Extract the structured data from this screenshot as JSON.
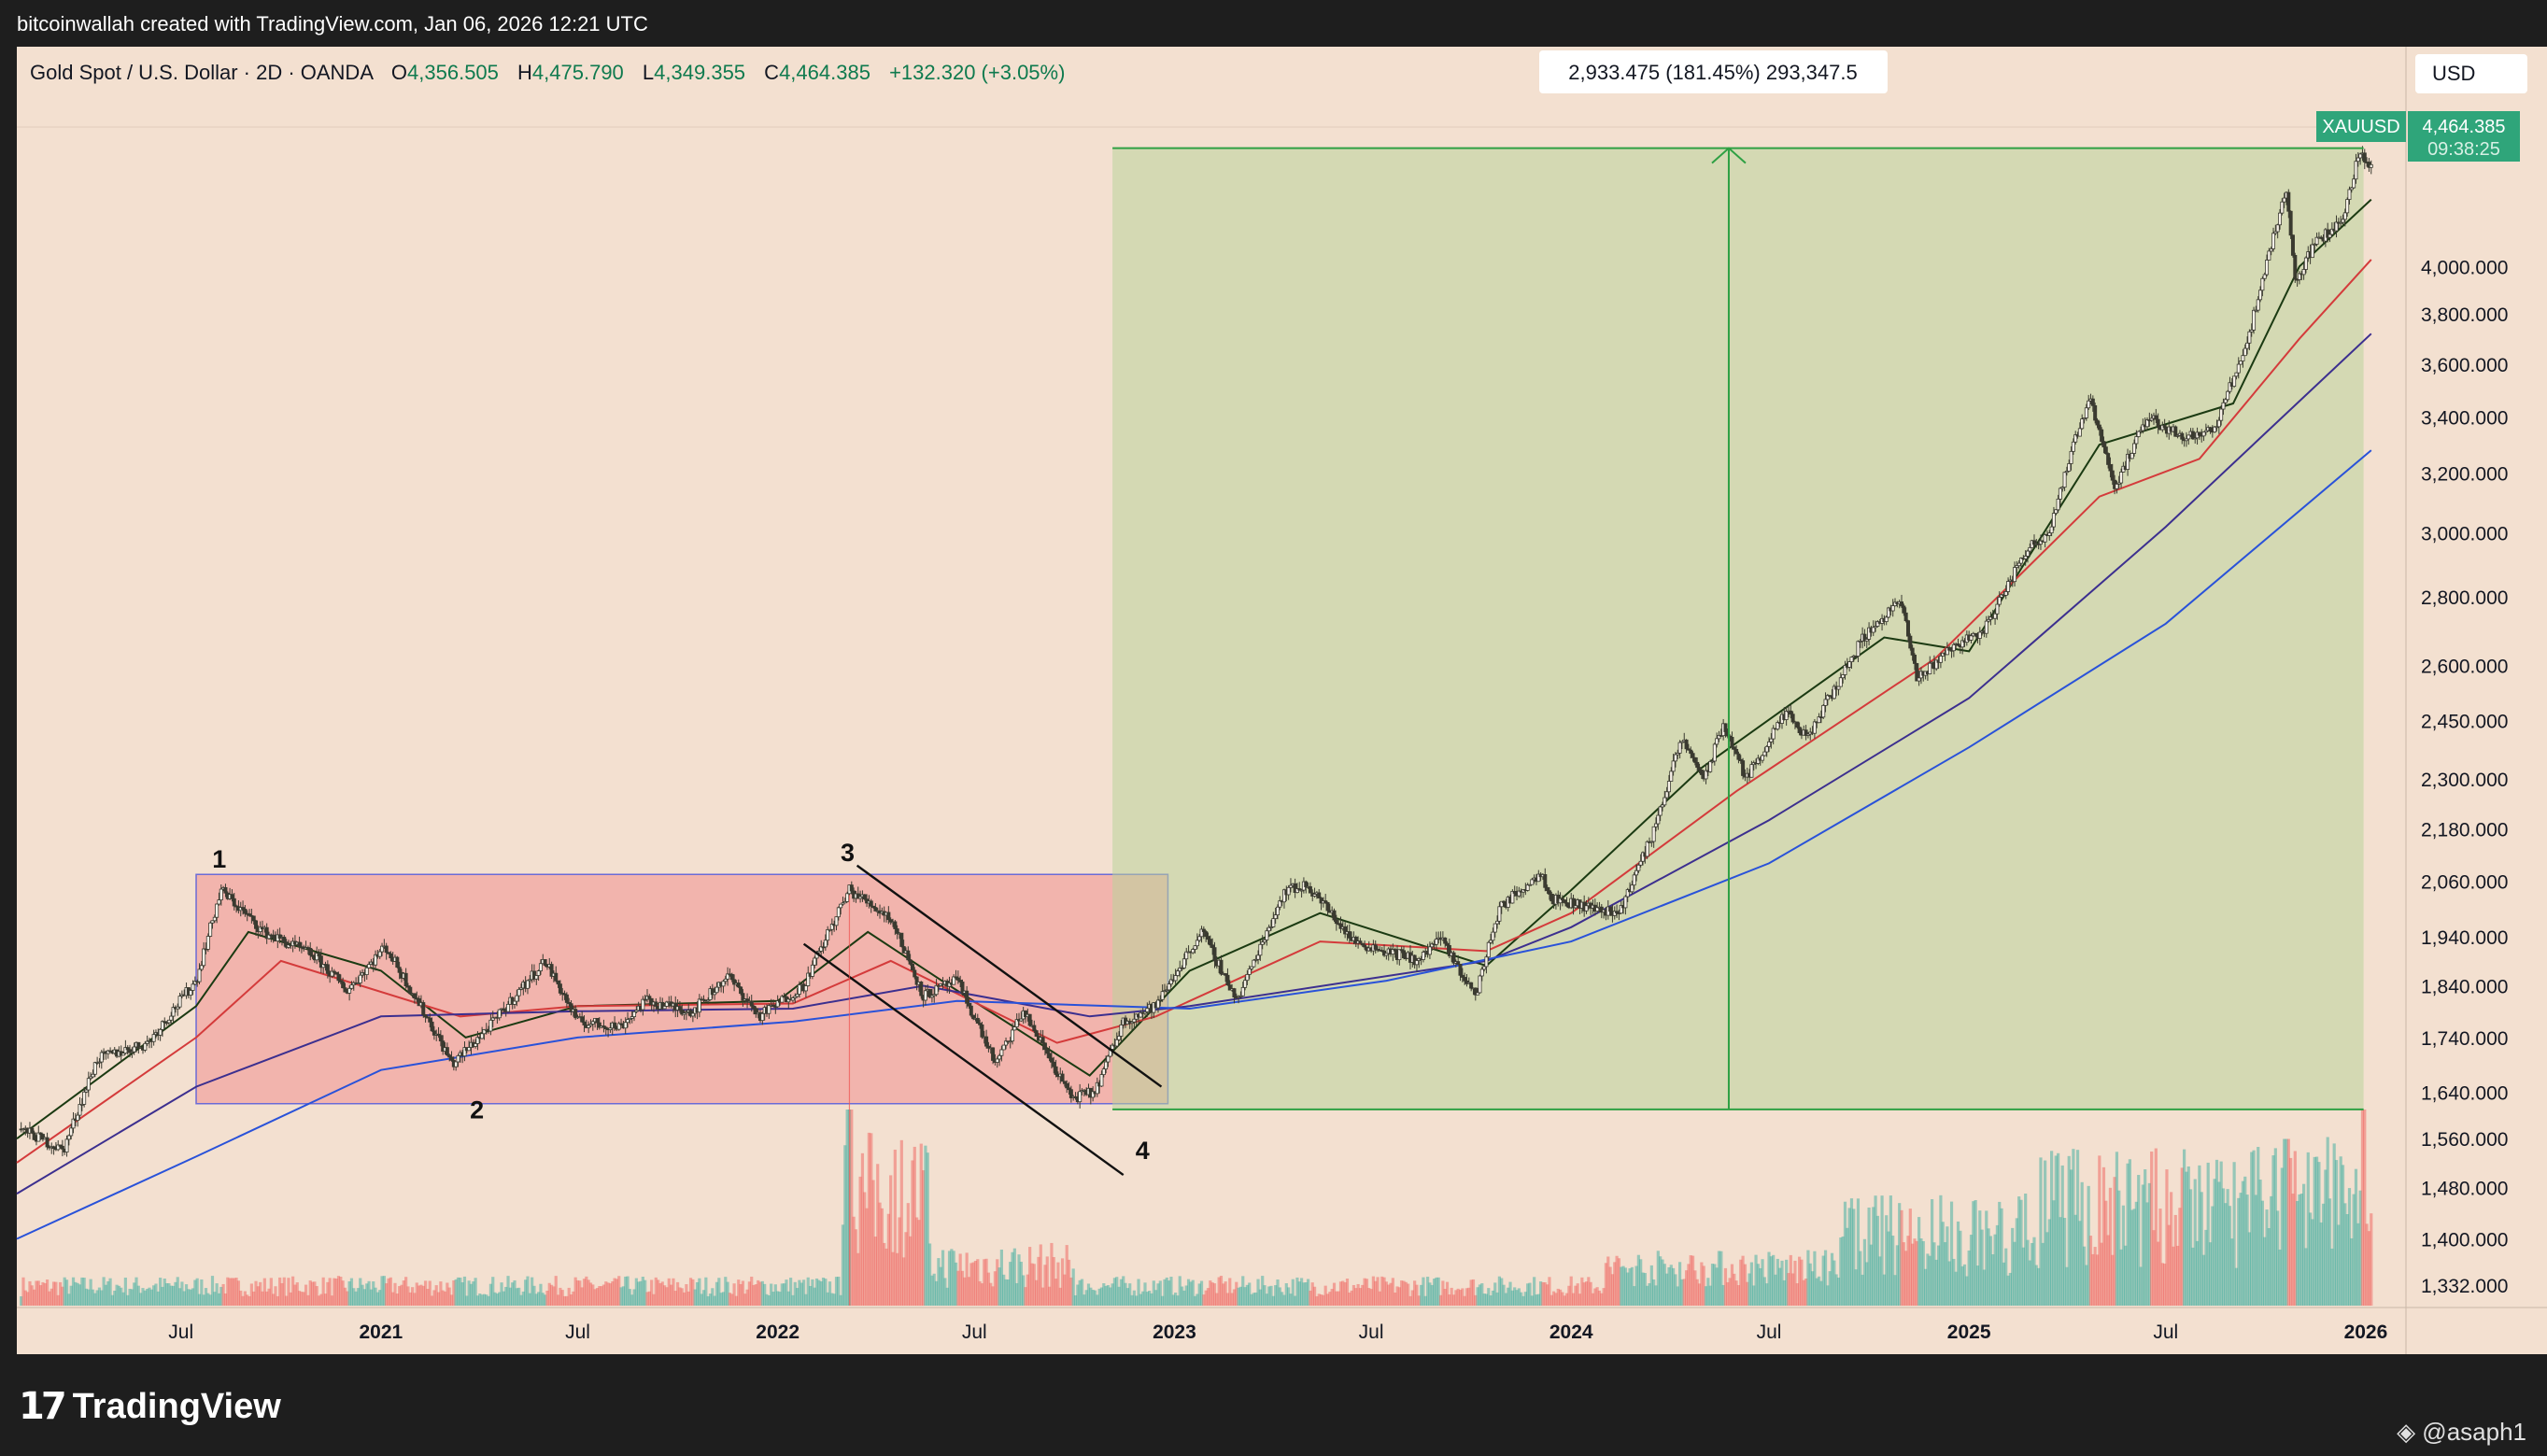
{
  "header": {
    "credit": "bitcoinwallah created with TradingView.com, Jan 06, 2026 12:21 UTC"
  },
  "legend": {
    "symbol": "Gold Spot / U.S. Dollar · 2D · OANDA",
    "open_label": "O",
    "open": "4,356.505",
    "high_label": "H",
    "high": "4,475.790",
    "low_label": "L",
    "low": "4,349.355",
    "close_label": "C",
    "close": "4,464.385",
    "change": "+132.320 (+3.05%)"
  },
  "currency_button": "USD",
  "price_tag": {
    "ticker": "XAUUSD",
    "price": "4,464.385",
    "countdown": "09:38:25"
  },
  "measure_label": "2,933.475 (181.45%) 293,347.5",
  "wave_labels": [
    "1",
    "2",
    "3",
    "4"
  ],
  "footer": {
    "brand": "TradingView",
    "watermark": "@asaph1"
  },
  "colors": {
    "plot_bg": "#f3e0d0",
    "up": "#26a69a",
    "down": "#ef5350",
    "candle": "#3a3a30",
    "ema_short": "#1b3a12",
    "ema_mid": "#d43b3b",
    "ema_long": "#3c2f8f",
    "ema_longest": "#2952d9",
    "range_box": "#f09090",
    "measure_box": "#b9d49a",
    "measure_line": "#2ea043"
  },
  "chart_data": {
    "type": "candlestick",
    "y_scale": "log",
    "ylim": [
      1300,
      4650
    ],
    "y_ticks": [
      1332,
      1400,
      1480,
      1560,
      1640,
      1740,
      1840,
      1940,
      2060,
      2180,
      2300,
      2450,
      2600,
      2800,
      3000,
      3200,
      3400,
      3600,
      3800,
      4000
    ],
    "y_tick_labels": [
      "1,332.000",
      "1,400.000",
      "1,480.000",
      "1,560.000",
      "1,640.000",
      "1,740.000",
      "1,840.000",
      "1,940.000",
      "2,060.000",
      "2,180.000",
      "2,300.000",
      "2,450.000",
      "2,600.000",
      "2,800.000",
      "3,000.000",
      "3,200.000",
      "3,400.000",
      "3,600.000",
      "3,800.000",
      "4,000.000"
    ],
    "x_ticks": [
      {
        "date": "2020-07-01",
        "label": "Jul",
        "bold": false
      },
      {
        "date": "2021-01-01",
        "label": "2021",
        "bold": true
      },
      {
        "date": "2021-07-01",
        "label": "Jul",
        "bold": false
      },
      {
        "date": "2022-01-01",
        "label": "2022",
        "bold": true
      },
      {
        "date": "2022-07-01",
        "label": "Jul",
        "bold": false
      },
      {
        "date": "2023-01-01",
        "label": "2023",
        "bold": true
      },
      {
        "date": "2023-07-01",
        "label": "Jul",
        "bold": false
      },
      {
        "date": "2024-01-01",
        "label": "2024",
        "bold": true
      },
      {
        "date": "2024-07-01",
        "label": "Jul",
        "bold": false
      },
      {
        "date": "2025-01-01",
        "label": "2025",
        "bold": true
      },
      {
        "date": "2025-07-01",
        "label": "Jul",
        "bold": false
      },
      {
        "date": "2026-01-01",
        "label": "2026",
        "bold": true
      }
    ],
    "price_path": [
      [
        "2020-02-01",
        1580
      ],
      [
        "2020-03-15",
        1540
      ],
      [
        "2020-04-15",
        1700
      ],
      [
        "2020-06-01",
        1730
      ],
      [
        "2020-07-15",
        1850
      ],
      [
        "2020-08-07",
        2040
      ],
      [
        "2020-09-15",
        1950
      ],
      [
        "2020-11-01",
        1900
      ],
      [
        "2020-12-01",
        1830
      ],
      [
        "2021-01-05",
        1920
      ],
      [
        "2021-03-08",
        1690
      ],
      [
        "2021-04-15",
        1770
      ],
      [
        "2021-06-01",
        1890
      ],
      [
        "2021-07-01",
        1770
      ],
      [
        "2021-08-09",
        1760
      ],
      [
        "2021-09-01",
        1810
      ],
      [
        "2021-10-15",
        1790
      ],
      [
        "2021-11-16",
        1860
      ],
      [
        "2021-12-15",
        1780
      ],
      [
        "2022-01-25",
        1840
      ],
      [
        "2022-03-08",
        2040
      ],
      [
        "2022-04-15",
        1980
      ],
      [
        "2022-05-15",
        1820
      ],
      [
        "2022-06-15",
        1850
      ],
      [
        "2022-07-21",
        1690
      ],
      [
        "2022-08-15",
        1790
      ],
      [
        "2022-09-28",
        1630
      ],
      [
        "2022-10-20",
        1640
      ],
      [
        "2022-11-15",
        1770
      ],
      [
        "2022-12-15",
        1800
      ],
      [
        "2023-01-26",
        1950
      ],
      [
        "2023-02-28",
        1810
      ],
      [
        "2023-04-13",
        2040
      ],
      [
        "2023-05-04",
        2050
      ],
      [
        "2023-06-15",
        1930
      ],
      [
        "2023-08-15",
        1890
      ],
      [
        "2023-09-01",
        1940
      ],
      [
        "2023-10-05",
        1820
      ],
      [
        "2023-10-27",
        2000
      ],
      [
        "2023-12-04",
        2080
      ],
      [
        "2023-12-15",
        2020
      ],
      [
        "2024-02-14",
        1990
      ],
      [
        "2024-03-15",
        2160
      ],
      [
        "2024-04-12",
        2400
      ],
      [
        "2024-05-03",
        2300
      ],
      [
        "2024-05-20",
        2440
      ],
      [
        "2024-06-10",
        2300
      ],
      [
        "2024-07-17",
        2470
      ],
      [
        "2024-08-05",
        2400
      ],
      [
        "2024-09-26",
        2680
      ],
      [
        "2024-10-30",
        2790
      ],
      [
        "2024-11-14",
        2560
      ],
      [
        "2024-12-15",
        2650
      ],
      [
        "2025-01-15",
        2700
      ],
      [
        "2025-02-24",
        2950
      ],
      [
        "2025-03-15",
        3000
      ],
      [
        "2025-04-22",
        3480
      ],
      [
        "2025-05-15",
        3150
      ],
      [
        "2025-06-15",
        3400
      ],
      [
        "2025-07-15",
        3330
      ],
      [
        "2025-08-15",
        3350
      ],
      [
        "2025-09-15",
        3700
      ],
      [
        "2025-10-20",
        4350
      ],
      [
        "2025-10-28",
        3930
      ],
      [
        "2025-11-15",
        4100
      ],
      [
        "2025-12-10",
        4200
      ],
      [
        "2025-12-26",
        4520
      ],
      [
        "2026-01-06",
        4464
      ]
    ],
    "ema_short": [
      [
        "2020-02-01",
        1560
      ],
      [
        "2020-07-15",
        1800
      ],
      [
        "2020-09-01",
        1950
      ],
      [
        "2021-01-01",
        1870
      ],
      [
        "2021-03-20",
        1740
      ],
      [
        "2021-07-01",
        1800
      ],
      [
        "2022-01-01",
        1810
      ],
      [
        "2022-03-25",
        1950
      ],
      [
        "2022-06-01",
        1850
      ],
      [
        "2022-10-15",
        1670
      ],
      [
        "2023-01-15",
        1870
      ],
      [
        "2023-05-15",
        1990
      ],
      [
        "2023-10-15",
        1880
      ],
      [
        "2024-01-01",
        2040
      ],
      [
        "2024-05-01",
        2330
      ],
      [
        "2024-10-15",
        2680
      ],
      [
        "2025-01-01",
        2640
      ],
      [
        "2025-05-01",
        3300
      ],
      [
        "2025-09-01",
        3450
      ],
      [
        "2025-11-01",
        4000
      ],
      [
        "2026-01-06",
        4300
      ]
    ],
    "ema_mid": [
      [
        "2020-02-01",
        1520
      ],
      [
        "2020-07-15",
        1740
      ],
      [
        "2020-10-01",
        1890
      ],
      [
        "2021-03-15",
        1780
      ],
      [
        "2021-07-01",
        1800
      ],
      [
        "2022-01-15",
        1805
      ],
      [
        "2022-04-15",
        1890
      ],
      [
        "2022-09-15",
        1730
      ],
      [
        "2022-12-15",
        1780
      ],
      [
        "2023-05-15",
        1930
      ],
      [
        "2023-10-15",
        1910
      ],
      [
        "2024-01-01",
        1990
      ],
      [
        "2024-06-01",
        2270
      ],
      [
        "2024-12-01",
        2620
      ],
      [
        "2025-05-01",
        3120
      ],
      [
        "2025-08-01",
        3250
      ],
      [
        "2025-11-01",
        3700
      ],
      [
        "2026-01-06",
        4030
      ]
    ],
    "ema_long": [
      [
        "2020-02-01",
        1470
      ],
      [
        "2020-07-15",
        1650
      ],
      [
        "2021-01-01",
        1780
      ],
      [
        "2021-07-01",
        1790
      ],
      [
        "2022-01-15",
        1795
      ],
      [
        "2022-05-15",
        1840
      ],
      [
        "2022-10-15",
        1780
      ],
      [
        "2023-01-15",
        1800
      ],
      [
        "2023-10-15",
        1890
      ],
      [
        "2024-01-01",
        1960
      ],
      [
        "2024-07-01",
        2200
      ],
      [
        "2025-01-01",
        2510
      ],
      [
        "2025-07-01",
        3020
      ],
      [
        "2026-01-06",
        3720
      ]
    ],
    "ema_longest": [
      [
        "2020-02-01",
        1400
      ],
      [
        "2020-07-15",
        1530
      ],
      [
        "2021-01-01",
        1680
      ],
      [
        "2021-07-01",
        1740
      ],
      [
        "2022-01-15",
        1770
      ],
      [
        "2022-06-15",
        1810
      ],
      [
        "2023-01-15",
        1795
      ],
      [
        "2023-07-15",
        1850
      ],
      [
        "2024-01-01",
        1930
      ],
      [
        "2024-07-01",
        2100
      ],
      [
        "2025-01-01",
        2380
      ],
      [
        "2025-07-01",
        2720
      ],
      [
        "2026-01-06",
        3280
      ]
    ],
    "volume_spikes": [
      [
        "2022-03-08",
        1.0
      ],
      [
        "2025-10-20",
        0.85
      ],
      [
        "2025-12-30",
        1.0
      ]
    ],
    "range_box": {
      "x0": "2020-07-15",
      "x1": "2022-12-26",
      "y0": 1620,
      "y1": 2075
    },
    "measure": {
      "x0": "2022-11-05",
      "x1": "2025-12-30",
      "y_low": 1610,
      "y_high": 4545,
      "mid": "2024-05-25"
    },
    "channel_upper": [
      [
        "2022-03-15",
        2095
      ],
      [
        "2022-12-20",
        1650
      ]
    ],
    "channel_lower": [
      [
        "2022-01-25",
        1925
      ],
      [
        "2022-11-15",
        1500
      ]
    ],
    "wave_points": [
      [
        "2020-08-07",
        2090
      ],
      [
        "2021-04-01",
        1640
      ],
      [
        "2022-03-08",
        2105
      ],
      [
        "2022-11-12",
        1570
      ]
    ]
  }
}
